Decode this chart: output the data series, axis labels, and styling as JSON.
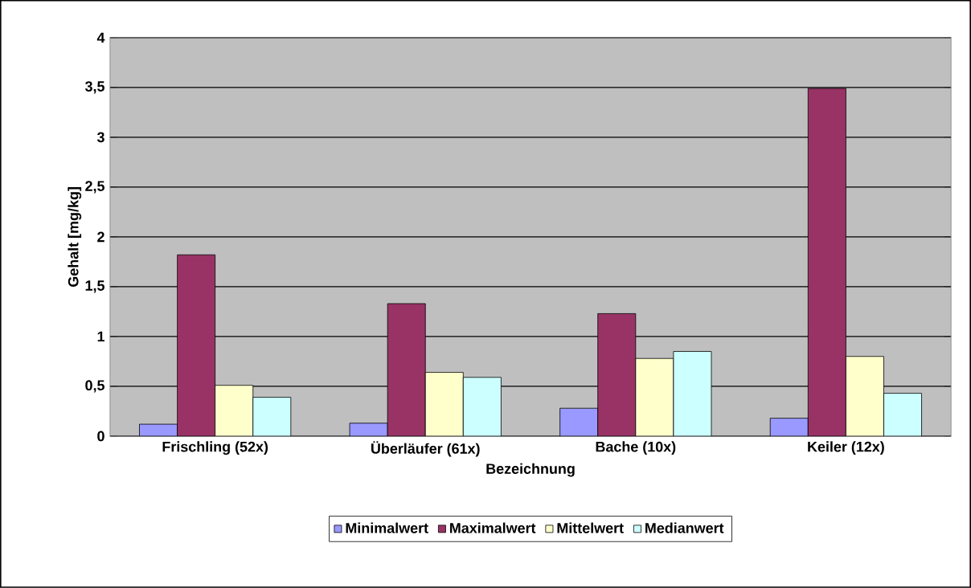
{
  "chart_data": {
    "type": "bar",
    "xlabel": "Bezeichnung",
    "ylabel": "Gehalt [mg/kg]",
    "categories": [
      "Frischling (52x)",
      "Überläufer (61x)",
      "Bache (10x)",
      "Keiler (12x)"
    ],
    "series": [
      {
        "name": "Minimalwert",
        "color": "#9999ff",
        "values": [
          0.12,
          0.13,
          0.28,
          0.18
        ]
      },
      {
        "name": "Maximalwert",
        "color": "#993366",
        "values": [
          1.82,
          1.33,
          1.23,
          3.49
        ]
      },
      {
        "name": "Mittelwert",
        "color": "#ffffcc",
        "values": [
          0.51,
          0.64,
          0.78,
          0.8
        ]
      },
      {
        "name": "Medianwert",
        "color": "#ccffff",
        "values": [
          0.39,
          0.59,
          0.85,
          0.43
        ]
      }
    ],
    "ylim": [
      0,
      4
    ],
    "yticks": [
      0,
      {
        "value": 0.5,
        "label": "0,5"
      },
      1,
      {
        "value": 1.5,
        "label": "1,5"
      },
      2,
      {
        "value": 2.5,
        "label": "2,5"
      },
      3,
      {
        "value": 3.5,
        "label": "3,5"
      },
      4
    ],
    "grid": "y",
    "legend": "bottom"
  }
}
